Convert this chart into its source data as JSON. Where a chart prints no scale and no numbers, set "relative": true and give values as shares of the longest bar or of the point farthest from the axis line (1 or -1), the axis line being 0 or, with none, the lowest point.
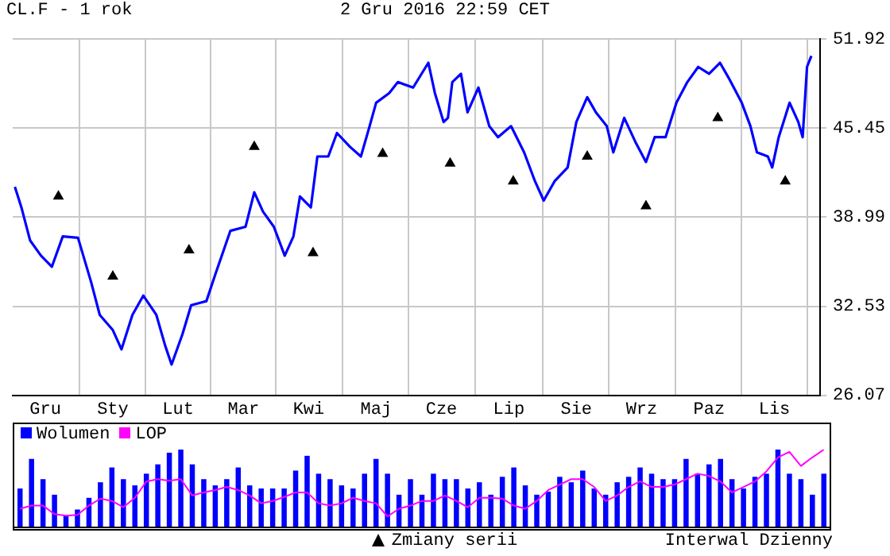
{
  "chart_data": [
    {
      "type": "line",
      "title": "CL.F - 1 rok",
      "subtitle": "2 Gru 2016 22:59 CET",
      "annotations": [
        "Interwal Dzienny"
      ],
      "categories": [
        null,
        null,
        null,
        null,
        null,
        null,
        null,
        null,
        null,
        null,
        null,
        null,
        null,
        null,
        null,
        "Gru",
        null,
        null,
        null,
        null,
        null,
        null,
        null,
        null,
        null,
        null,
        null,
        null,
        null,
        null,
        null,
        null,
        null,
        null,
        null,
        null,
        null,
        null,
        null,
        null,
        null,
        null,
        null,
        null,
        null,
        null,
        "Sty",
        null,
        null,
        null,
        null,
        null,
        null,
        null,
        null,
        null,
        null,
        null,
        null,
        null,
        null,
        null,
        null,
        null,
        null,
        null,
        null,
        null,
        null,
        null,
        null,
        null,
        null,
        null,
        null,
        null,
        "Lut",
        null,
        null,
        null,
        null,
        null,
        null,
        null,
        null,
        null,
        null,
        null,
        null,
        null,
        null,
        null,
        null,
        null,
        null,
        null,
        null,
        null,
        null,
        null,
        null,
        null,
        null,
        null,
        null,
        null,
        "Mar",
        null,
        null,
        null,
        null,
        null,
        null,
        null,
        null,
        null,
        null,
        null,
        null,
        null,
        null,
        null,
        null,
        null,
        null,
        null,
        null,
        null,
        null,
        null,
        null,
        null,
        null,
        null,
        null,
        null,
        "Kwi",
        null,
        null,
        null,
        null,
        null,
        null,
        null,
        null,
        null,
        null,
        null,
        null,
        null,
        null,
        null,
        null,
        null,
        null,
        null,
        null,
        null,
        null,
        null,
        null,
        null,
        null,
        null,
        null,
        null,
        null,
        "Maj",
        null,
        null,
        null,
        null,
        null,
        null,
        null,
        null,
        null,
        null,
        null,
        null,
        null,
        null,
        null,
        null,
        null,
        null,
        null,
        null,
        null,
        null,
        null,
        null,
        null,
        null,
        null,
        null,
        null,
        "Cze",
        null,
        null,
        null,
        null,
        null,
        null,
        null,
        null,
        null,
        null,
        null,
        null,
        null,
        null,
        null,
        null,
        null,
        null,
        null,
        null,
        null,
        null,
        null,
        null,
        null,
        null,
        null,
        null,
        null,
        null,
        "Lip",
        null,
        null,
        null,
        null,
        null,
        null,
        null,
        null,
        null,
        null,
        null,
        null,
        null,
        null,
        null,
        null,
        null,
        null,
        null,
        null,
        null,
        null,
        null,
        null,
        null,
        null,
        null,
        null,
        null,
        null,
        "Sie",
        null,
        null,
        null,
        null,
        null,
        null,
        null,
        null,
        null,
        null,
        null,
        null,
        null,
        null,
        null,
        null,
        null,
        null,
        null,
        null,
        null,
        null,
        null,
        null,
        null,
        null,
        null,
        null,
        null,
        "Wrz",
        null,
        null,
        null,
        null,
        null,
        null,
        null,
        null,
        null,
        null,
        null,
        null,
        null,
        null,
        null,
        null,
        null,
        null,
        null,
        null,
        null,
        null,
        null,
        null,
        null,
        null,
        null,
        null,
        null,
        null,
        "Paz",
        null,
        null,
        null,
        null,
        null,
        null,
        null,
        null,
        null,
        null,
        null,
        null,
        null,
        null,
        null,
        null,
        null,
        null,
        null,
        null,
        null,
        null,
        null,
        null,
        null,
        null,
        null,
        null,
        null,
        "Lis",
        null,
        null,
        null,
        null,
        null,
        null,
        null,
        null,
        null,
        null,
        null,
        null,
        null,
        null,
        null,
        null,
        null,
        null,
        null,
        null,
        null
      ],
      "ylim": [
        26.07,
        51.92
      ],
      "yticks": [
        26.07,
        32.53,
        38.99,
        45.45,
        51.92
      ],
      "grid": true,
      "legend": "bottom",
      "series": [
        {
          "color": "#0000ff",
          "marker": "none",
          "values": [
            null,
            41.2,
            null,
            null,
            39.7,
            null,
            null,
            null,
            37.3,
            null,
            null,
            null,
            null,
            36.2,
            null,
            null,
            null,
            null,
            35.4,
            null,
            null,
            null,
            null,
            37.6,
            null,
            null,
            null,
            null,
            null,
            null,
            37.5,
            null,
            null,
            null,
            null,
            null,
            34.3,
            null,
            null,
            null,
            31.9,
            null,
            null,
            null,
            null,
            null,
            30.8,
            null,
            null,
            null,
            29.4,
            null,
            null,
            null,
            null,
            31.9,
            null,
            null,
            null,
            null,
            33.3,
            null,
            null,
            null,
            null,
            null,
            31.9,
            null,
            null,
            null,
            29.7,
            null,
            null,
            28.3,
            null,
            null,
            null,
            null,
            30.5,
            null,
            null,
            null,
            32.6,
            null,
            null,
            null,
            null,
            null,
            null,
            32.9,
            null,
            null,
            null,
            34.8,
            null,
            null,
            null,
            null,
            null,
            null,
            38.0,
            null,
            null,
            null,
            null,
            null,
            null,
            38.3,
            null,
            null,
            null,
            40.8,
            null,
            null,
            null,
            39.4,
            null,
            null,
            null,
            null,
            38.3,
            null,
            null,
            null,
            null,
            36.2,
            null,
            null,
            null,
            37.6,
            null,
            null,
            40.5,
            null,
            null,
            null,
            null,
            39.7,
            null,
            null,
            43.4,
            null,
            null,
            null,
            null,
            43.4,
            null,
            null,
            null,
            45.1,
            null,
            null,
            null,
            null,
            null,
            44.1,
            null,
            null,
            null,
            null,
            43.4,
            null,
            null,
            null,
            45.6,
            null,
            null,
            47.3,
            null,
            null,
            null,
            null,
            null,
            48.0,
            null,
            null,
            null,
            48.8,
            null,
            null,
            null,
            null,
            null,
            null,
            48.4,
            null,
            null,
            null,
            null,
            null,
            null,
            50.2,
            null,
            null,
            48.0,
            null,
            null,
            null,
            45.9,
            null,
            46.2,
            null,
            48.8,
            null,
            null,
            null,
            49.4,
            null,
            null,
            46.6,
            null,
            null,
            null,
            null,
            48.4,
            null,
            null,
            null,
            null,
            45.6,
            null,
            null,
            null,
            44.8,
            null,
            null,
            null,
            null,
            null,
            45.6,
            null,
            null,
            null,
            null,
            null,
            43.7,
            null,
            null,
            null,
            null,
            41.6,
            null,
            null,
            null,
            40.2,
            null,
            null,
            null,
            null,
            41.6,
            null,
            null,
            null,
            null,
            null,
            42.6,
            null,
            null,
            null,
            45.9,
            null,
            null,
            null,
            null,
            47.7,
            null,
            null,
            null,
            46.6,
            null,
            null,
            null,
            null,
            45.6,
            null,
            null,
            43.7,
            null,
            null,
            null,
            null,
            46.2,
            null,
            null,
            null,
            null,
            44.5,
            null,
            null,
            null,
            null,
            43.0,
            null,
            null,
            null,
            44.8,
            null,
            null,
            null,
            null,
            44.8,
            null,
            null,
            null,
            null,
            47.3,
            null,
            null,
            null,
            null,
            48.8,
            null,
            null,
            null,
            null,
            49.9,
            null,
            null,
            null,
            null,
            49.4,
            null,
            null,
            null,
            null,
            50.2,
            null,
            null,
            null,
            49.1,
            null,
            null,
            null,
            null,
            null,
            47.3,
            null,
            null,
            null,
            45.6,
            null,
            null,
            43.7,
            null,
            null,
            null,
            null,
            43.4,
            null,
            42.6,
            null,
            null,
            44.8,
            null,
            null,
            null,
            null,
            47.3,
            null,
            null,
            null,
            45.9,
            null,
            44.8,
            null,
            49.9,
            null,
            50.7,
            null,
            null,
            null,
            null
          ]
        },
        {
          "name": "Zmiany serii",
          "type": "scatter",
          "color": "#000000",
          "marker": "triangle",
          "values": [
            null,
            null,
            null,
            null,
            null,
            null,
            null,
            null,
            null,
            null,
            null,
            null,
            null,
            null,
            null,
            null,
            null,
            null,
            null,
            null,
            null,
            40.5,
            null,
            null,
            null,
            null,
            null,
            null,
            null,
            null,
            null,
            null,
            null,
            null,
            null,
            null,
            null,
            null,
            null,
            null,
            null,
            null,
            null,
            null,
            null,
            null,
            34.7,
            null,
            null,
            null,
            null,
            null,
            null,
            null,
            null,
            null,
            null,
            null,
            null,
            null,
            null,
            null,
            null,
            null,
            null,
            null,
            null,
            null,
            null,
            null,
            null,
            null,
            null,
            null,
            null,
            null,
            null,
            null,
            null,
            null,
            null,
            36.6,
            null,
            null,
            null,
            null,
            null,
            null,
            null,
            null,
            null,
            null,
            null,
            null,
            null,
            null,
            null,
            null,
            null,
            null,
            null,
            null,
            null,
            null,
            null,
            null,
            null,
            null,
            null,
            null,
            null,
            44.1,
            null,
            null,
            null,
            null,
            null,
            null,
            null,
            null,
            null,
            null,
            null,
            null,
            null,
            null,
            null,
            null,
            null,
            null,
            null,
            null,
            null,
            null,
            null,
            null,
            null,
            null,
            36.4,
            null,
            null,
            null,
            null,
            null,
            null,
            null,
            null,
            null,
            null,
            null,
            null,
            null,
            null,
            null,
            null,
            null,
            null,
            null,
            null,
            null,
            null,
            null,
            null,
            null,
            null,
            null,
            null,
            null,
            null,
            null,
            43.6,
            null,
            null,
            null,
            null,
            null,
            null,
            null,
            null,
            null,
            null,
            null,
            null,
            null,
            null,
            null,
            null,
            null,
            null,
            null,
            null,
            null,
            null,
            null,
            null,
            null,
            null,
            null,
            null,
            null,
            null,
            42.9,
            null,
            null,
            null,
            null,
            null,
            null,
            null,
            null,
            null,
            null,
            null,
            null,
            null,
            null,
            null,
            null,
            null,
            null,
            null,
            null,
            null,
            null,
            null,
            null,
            null,
            null,
            null,
            null,
            41.6,
            null,
            null,
            null,
            null,
            null,
            null,
            null,
            null,
            null,
            null,
            null,
            null,
            null,
            null,
            null,
            null,
            null,
            null,
            null,
            null,
            null,
            null,
            null,
            null,
            null,
            null,
            null,
            null,
            null,
            null,
            null,
            null,
            null,
            43.4,
            null,
            null,
            null,
            null,
            null,
            null,
            null,
            null,
            null,
            null,
            null,
            null,
            null,
            null,
            null,
            null,
            null,
            null,
            null,
            null,
            null,
            null,
            null,
            null,
            null,
            null,
            39.8,
            null,
            null,
            null,
            null,
            null,
            null,
            null,
            null,
            null,
            null,
            null,
            null,
            null,
            null,
            null,
            null,
            null,
            null,
            null,
            null,
            null,
            null,
            null,
            null,
            null,
            null,
            null,
            null,
            null,
            null,
            null,
            null,
            46.2,
            null,
            null,
            null,
            null,
            null,
            null,
            null,
            null,
            null,
            null,
            null,
            null,
            null,
            null,
            null,
            null,
            null,
            null,
            null,
            null,
            null,
            null,
            null,
            null,
            null,
            null,
            null,
            null,
            null,
            null,
            41.6,
            null,
            null,
            null,
            null,
            null,
            null,
            null,
            null,
            null,
            null,
            null,
            null,
            null,
            null,
            null,
            null
          ]
        }
      ]
    },
    {
      "type": "bar",
      "relative": true,
      "legend": "top left",
      "categories": [
        null,
        null,
        null,
        null,
        null,
        null,
        null,
        null,
        null,
        null,
        null,
        null,
        null,
        null,
        null,
        null,
        null,
        null,
        null,
        null,
        null,
        null,
        null,
        null,
        null,
        null,
        null,
        null,
        null,
        null,
        null,
        null,
        null,
        null,
        null,
        null,
        null,
        null,
        null,
        null,
        null,
        null,
        null,
        null,
        null,
        null,
        null,
        null,
        null,
        null,
        null,
        null,
        null,
        null,
        null,
        null,
        null,
        null,
        null,
        null,
        null,
        null,
        null,
        null,
        null,
        null,
        null,
        null,
        null,
        null,
        null
      ],
      "series": [
        {
          "name": "Wolumen",
          "color": "#0000ff",
          "values": [
            0.5,
            0.88,
            0.62,
            0.42,
            0.15,
            0.23,
            0.38,
            0.58,
            0.77,
            0.62,
            0.54,
            0.69,
            0.81,
            0.96,
            1,
            0.81,
            0.62,
            0.54,
            0.62,
            0.77,
            0.54,
            0.5,
            0.5,
            0.5,
            0.73,
            0.92,
            0.69,
            0.62,
            0.54,
            0.5,
            0.69,
            0.88,
            0.69,
            0.42,
            0.62,
            0.42,
            0.69,
            0.62,
            0.62,
            0.5,
            0.58,
            0.42,
            0.65,
            0.77,
            0.54,
            0.42,
            0.46,
            0.65,
            0.58,
            0.73,
            0.5,
            0.42,
            0.58,
            0.65,
            0.77,
            0.69,
            0.62,
            0.62,
            0.88,
            0.69,
            0.81,
            0.88,
            0.62,
            0.5,
            0.65,
            0.69,
            1,
            0.69,
            0.62,
            0.42,
            0.69
          ]
        }
      ]
    },
    {
      "type": "line",
      "relative": true,
      "legend": "top left",
      "categories": [
        null,
        null,
        null,
        null,
        null,
        null,
        null,
        null,
        null,
        null,
        null,
        null,
        null,
        null,
        null,
        null,
        null,
        null,
        null,
        null,
        null,
        null,
        null,
        null,
        null,
        null,
        null,
        null,
        null,
        null,
        null,
        null,
        null,
        null,
        null,
        null,
        null,
        null,
        null,
        null,
        null,
        null,
        null,
        null,
        null,
        null,
        null,
        null,
        null,
        null,
        null,
        null,
        null,
        null,
        null,
        null,
        null,
        null,
        null,
        null,
        null,
        null,
        null,
        null,
        null,
        null,
        null,
        null,
        null,
        null,
        null
      ],
      "series": [
        {
          "name": "LOP",
          "color": "#ff00ff",
          "values": [
            0.24,
            0.28,
            0.28,
            0.17,
            0.15,
            0.16,
            0.28,
            0.37,
            0.34,
            0.26,
            0.38,
            0.59,
            0.62,
            0.6,
            0.62,
            0.41,
            0.45,
            0.48,
            0.52,
            0.48,
            0.41,
            0.31,
            0.34,
            0.39,
            0.45,
            0.45,
            0.31,
            0.28,
            0.31,
            0.38,
            0.34,
            0.31,
            0.14,
            0.24,
            0.28,
            0.34,
            0.34,
            0.41,
            0.34,
            0.26,
            0.38,
            0.38,
            0.37,
            0.28,
            0.24,
            0.34,
            0.48,
            0.55,
            0.62,
            0.62,
            0.52,
            0.34,
            0.41,
            0.52,
            0.59,
            0.52,
            0.52,
            0.55,
            0.62,
            0.69,
            0.66,
            0.59,
            0.45,
            0.52,
            0.59,
            0.72,
            0.9,
            0.97,
            0.79,
            0.9,
            1
          ]
        }
      ]
    }
  ]
}
